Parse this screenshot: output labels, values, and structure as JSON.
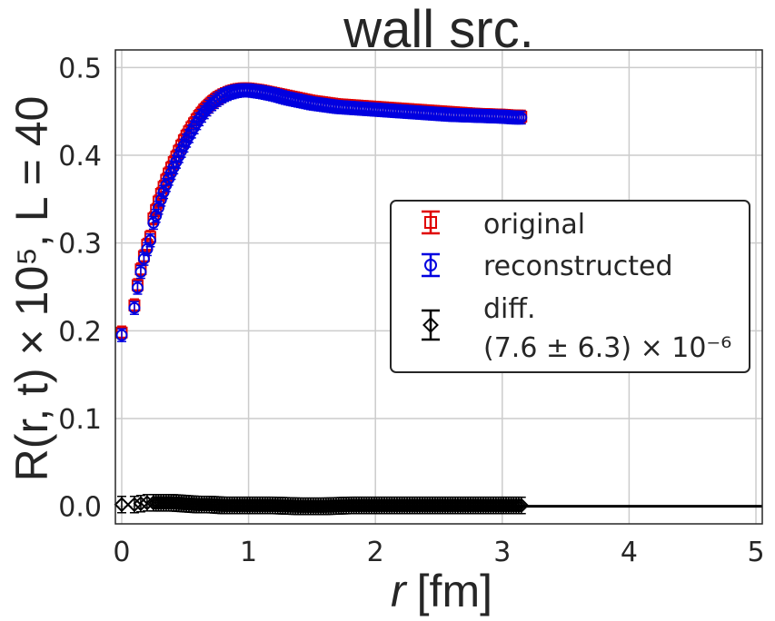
{
  "chart_data": {
    "type": "scatter",
    "title": "wall src.",
    "xlabel_main": "r",
    "xlabel_unit": "[fm]",
    "ylabel": "R(r, t) × 10⁵, L = 40",
    "xlim": [
      -0.05,
      5.05
    ],
    "ylim": [
      -0.02,
      0.52
    ],
    "x_ticks": [
      0,
      1,
      2,
      3,
      4,
      5
    ],
    "y_ticks": [
      0.0,
      0.1,
      0.2,
      0.3,
      0.4,
      0.5
    ],
    "grid": true,
    "legend_position": "center-right",
    "series": [
      {
        "name": "original",
        "marker": "square",
        "color": "#e00000",
        "x": [
          0.0,
          0.1,
          0.125,
          0.15,
          0.175,
          0.2,
          0.225,
          0.25,
          0.275,
          0.3,
          0.325,
          0.35,
          0.375,
          0.4,
          0.425,
          0.45,
          0.5,
          0.55,
          0.6,
          0.65,
          0.7,
          0.75,
          0.8,
          0.85,
          0.9,
          0.95,
          1.0,
          1.1,
          1.2,
          1.3,
          1.4,
          1.5,
          1.6,
          1.7,
          1.8,
          1.9,
          2.0,
          2.2,
          2.4,
          2.6,
          2.8,
          3.0,
          3.1,
          3.15
        ],
        "y": [
          0.198,
          0.229,
          0.252,
          0.27,
          0.285,
          0.298,
          0.307,
          0.328,
          0.34,
          0.352,
          0.362,
          0.372,
          0.381,
          0.389,
          0.397,
          0.405,
          0.42,
          0.432,
          0.443,
          0.452,
          0.459,
          0.465,
          0.469,
          0.472,
          0.474,
          0.475,
          0.475,
          0.473,
          0.47,
          0.467,
          0.464,
          0.461,
          0.459,
          0.457,
          0.456,
          0.455,
          0.454,
          0.452,
          0.45,
          0.448,
          0.446,
          0.445,
          0.444,
          0.444
        ]
      },
      {
        "name": "reconstructed",
        "marker": "circle",
        "color": "#0000e0",
        "x": [
          0.0,
          0.1,
          0.125,
          0.15,
          0.175,
          0.2,
          0.225,
          0.25,
          0.275,
          0.3,
          0.325,
          0.35,
          0.375,
          0.4,
          0.425,
          0.45,
          0.5,
          0.55,
          0.6,
          0.65,
          0.7,
          0.75,
          0.8,
          0.85,
          0.9,
          0.95,
          1.0,
          1.1,
          1.2,
          1.3,
          1.4,
          1.5,
          1.6,
          1.7,
          1.8,
          1.9,
          2.0,
          2.2,
          2.4,
          2.6,
          2.8,
          3.0,
          3.1,
          3.15
        ],
        "y": [
          0.195,
          0.226,
          0.249,
          0.267,
          0.282,
          0.293,
          0.303,
          0.323,
          0.333,
          0.345,
          0.356,
          0.366,
          0.375,
          0.383,
          0.391,
          0.399,
          0.414,
          0.427,
          0.439,
          0.449,
          0.457,
          0.463,
          0.468,
          0.471,
          0.473,
          0.474,
          0.474,
          0.472,
          0.469,
          0.465,
          0.462,
          0.459,
          0.457,
          0.455,
          0.454,
          0.453,
          0.452,
          0.45,
          0.448,
          0.446,
          0.445,
          0.444,
          0.443,
          0.443
        ]
      },
      {
        "name": "diff.",
        "marker": "diamond",
        "color": "#000000",
        "x": [
          0.0,
          0.1,
          0.15,
          0.2,
          0.25,
          0.3,
          0.4,
          0.5,
          0.6,
          0.7,
          0.8,
          0.9,
          1.0,
          1.2,
          1.4,
          1.6,
          1.8,
          2.0,
          2.2,
          2.4,
          2.6,
          2.8,
          2.9,
          3.0,
          3.1,
          3.15
        ],
        "y": [
          0.002,
          0.002,
          0.003,
          0.004,
          0.004,
          0.004,
          0.004,
          0.003,
          0.002,
          0.002,
          0.001,
          0.001,
          0.001,
          0.001,
          0.0,
          0.0,
          0.001,
          0.001,
          0.001,
          0.001,
          0.001,
          0.001,
          0.001,
          0.001,
          0.001,
          0.001
        ]
      }
    ],
    "legend": {
      "entries": [
        "original",
        "reconstructed",
        "diff."
      ],
      "diff_note": "(7.6 ± 6.3) × 10⁻⁶"
    }
  }
}
